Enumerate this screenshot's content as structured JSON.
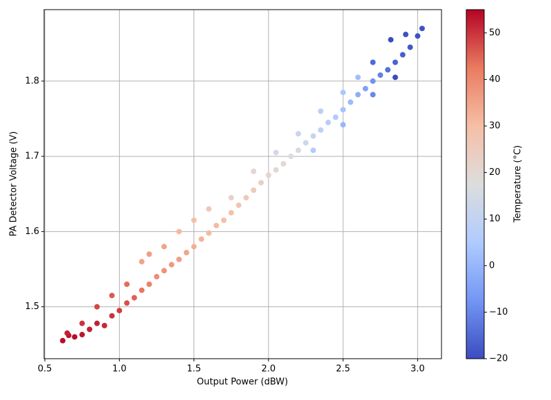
{
  "chart_data": {
    "type": "scatter",
    "x_label": "Output Power (dBW)",
    "y_label": "PA Detector Voltage (V)",
    "colorbar_label": "Temperature (°C)",
    "xlim": [
      0.495,
      3.16
    ],
    "ylim": [
      1.431,
      1.895
    ],
    "clim": [
      -20,
      55
    ],
    "xticks": [
      0.5,
      {
        "value": 1,
        "label": "1.0"
      },
      1.5,
      {
        "value": 2,
        "label": "2.0"
      },
      2.5,
      {
        "value": 3,
        "label": "3.0"
      }
    ],
    "yticks": [
      1.5,
      1.6,
      1.7,
      1.8
    ],
    "cticks": [
      {
        "value": -20,
        "label": "−20"
      },
      {
        "value": -10,
        "label": "−10"
      },
      0,
      10,
      20,
      30,
      40,
      50
    ],
    "grid": true,
    "colormap": [
      "#3b4cc0",
      "#7396f5",
      "#b0cbff",
      "#dddddd",
      "#f6bfa6",
      "#ea7b60",
      "#b40426"
    ],
    "series": [
      {
        "name": "Temperature",
        "x": [
          0.62,
          0.66,
          0.7,
          0.75,
          0.8,
          0.85,
          0.9,
          0.95,
          1.0,
          1.05,
          1.1,
          1.15,
          1.2,
          1.25,
          1.3,
          1.35,
          1.4,
          1.45,
          1.5,
          1.55,
          1.6,
          1.65,
          1.7,
          1.75,
          1.8,
          1.85,
          1.9,
          1.95,
          2.0,
          2.05,
          2.1,
          2.15,
          2.2,
          2.25,
          2.3,
          2.35,
          2.4,
          2.45,
          2.5,
          2.55,
          2.6,
          2.65,
          2.7,
          2.75,
          2.8,
          2.85,
          2.9,
          2.95,
          3.0,
          3.03,
          0.65,
          0.75,
          0.85,
          0.95,
          1.05,
          1.15,
          1.2,
          1.3,
          1.4,
          1.5,
          1.6,
          1.75,
          1.9,
          2.05,
          2.2,
          2.35,
          2.5,
          2.6,
          2.7,
          2.82,
          2.92,
          2.3,
          2.5,
          2.7,
          2.85
        ],
        "y": [
          1.455,
          1.462,
          1.46,
          1.463,
          1.47,
          1.478,
          1.475,
          1.488,
          1.495,
          1.505,
          1.512,
          1.522,
          1.53,
          1.54,
          1.548,
          1.556,
          1.563,
          1.572,
          1.58,
          1.59,
          1.598,
          1.608,
          1.615,
          1.625,
          1.635,
          1.645,
          1.655,
          1.665,
          1.675,
          1.682,
          1.69,
          1.7,
          1.708,
          1.718,
          1.727,
          1.735,
          1.745,
          1.752,
          1.762,
          1.772,
          1.782,
          1.79,
          1.8,
          1.808,
          1.815,
          1.825,
          1.835,
          1.845,
          1.86,
          1.87,
          1.465,
          1.478,
          1.5,
          1.515,
          1.53,
          1.56,
          1.57,
          1.58,
          1.6,
          1.615,
          1.63,
          1.645,
          1.68,
          1.705,
          1.73,
          1.76,
          1.785,
          1.805,
          1.825,
          1.855,
          1.862,
          1.708,
          1.742,
          1.782,
          1.805
        ],
        "values": [
          54,
          53,
          54,
          53,
          52,
          52,
          51,
          50,
          49,
          47,
          45,
          43,
          41,
          39,
          38,
          37,
          36,
          35,
          33,
          32,
          31,
          31,
          30,
          29,
          27,
          26,
          25,
          23,
          21,
          20,
          19,
          17,
          15,
          13,
          11,
          9,
          7,
          5,
          3,
          1,
          -2,
          -5,
          -8,
          -11,
          -14,
          -16,
          -17,
          -18,
          -19,
          -19,
          52,
          50,
          48,
          46,
          44,
          35,
          36,
          35,
          31,
          30,
          26,
          22,
          20,
          15,
          12,
          8,
          4,
          2,
          -15,
          -20,
          -19,
          5,
          0,
          -10,
          -20
        ]
      }
    ]
  }
}
